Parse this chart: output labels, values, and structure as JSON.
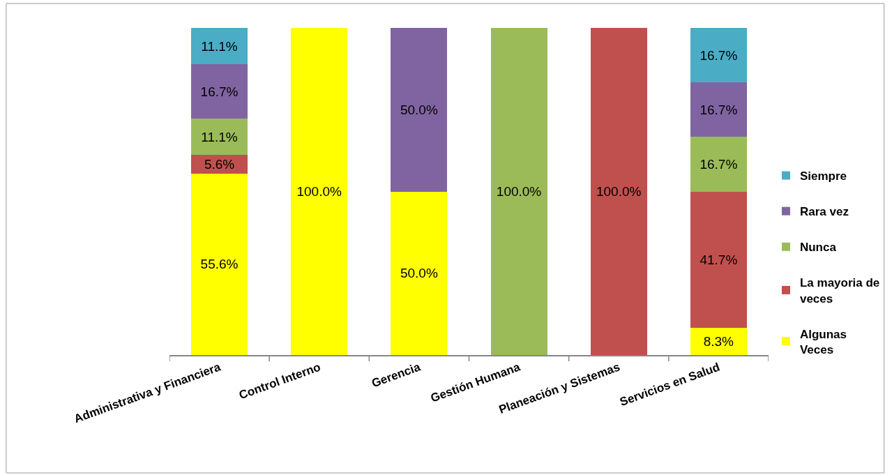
{
  "chart_data": {
    "type": "bar",
    "stacked": true,
    "categories": [
      "Administrativa y Financiera",
      "Control Interno",
      "Gerencia",
      "Gestión Humana",
      "Planeación y Sistemas",
      "Servicios en Salud"
    ],
    "series": [
      {
        "name": "Algunas Veces",
        "color": "#ffff00",
        "values": [
          55.6,
          100.0,
          50.0,
          null,
          null,
          8.3
        ],
        "value_labels": [
          "55.6%",
          "100.0%",
          "50.0%",
          null,
          null,
          "8.3%"
        ]
      },
      {
        "name": "La mayoria de veces",
        "color": "#c0504d",
        "values": [
          5.6,
          null,
          null,
          null,
          100.0,
          41.7
        ],
        "value_labels": [
          "5.6%",
          null,
          null,
          null,
          "100.0%",
          "41.7%"
        ]
      },
      {
        "name": "Nunca",
        "color": "#9bbb59",
        "values": [
          11.1,
          null,
          null,
          100.0,
          null,
          16.7
        ],
        "value_labels": [
          "11.1%",
          null,
          null,
          "100.0%",
          null,
          "16.7%"
        ]
      },
      {
        "name": "Rara vez",
        "color": "#8064a2",
        "values": [
          16.7,
          null,
          50.0,
          null,
          null,
          16.7
        ],
        "value_labels": [
          "16.7%",
          null,
          "50.0%",
          null,
          null,
          "16.7%"
        ]
      },
      {
        "name": "Siempre",
        "color": "#4bacc6",
        "values": [
          11.1,
          null,
          null,
          null,
          null,
          16.7
        ],
        "value_labels": [
          "11.1%",
          null,
          null,
          null,
          null,
          "16.7%"
        ]
      }
    ],
    "legend": "right",
    "tick_labels": "x"
  }
}
